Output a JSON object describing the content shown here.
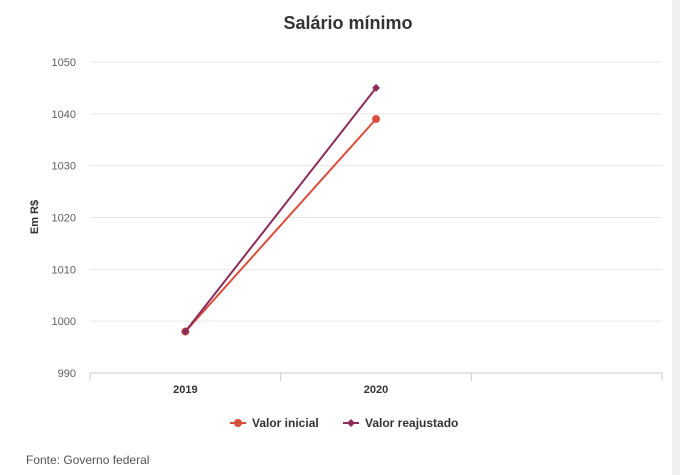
{
  "chart_data": {
    "type": "line",
    "title": "Salário mínimo",
    "xlabel": "",
    "ylabel": "Em R$",
    "categories": [
      "2019",
      "2020"
    ],
    "ylim": [
      990,
      1050
    ],
    "yticks": [
      990,
      1000,
      1010,
      1020,
      1030,
      1040,
      1050
    ],
    "grid": true,
    "legend_position": "bottom-center",
    "series": [
      {
        "name": "Valor inicial",
        "values": [
          998,
          1039
        ],
        "color": "#d94f3d",
        "marker": "circle"
      },
      {
        "name": "Valor reajustado",
        "values": [
          998,
          1045
        ],
        "color": "#8b2e5a",
        "marker": "diamond"
      }
    ]
  },
  "source": "Fonte: Governo federal"
}
